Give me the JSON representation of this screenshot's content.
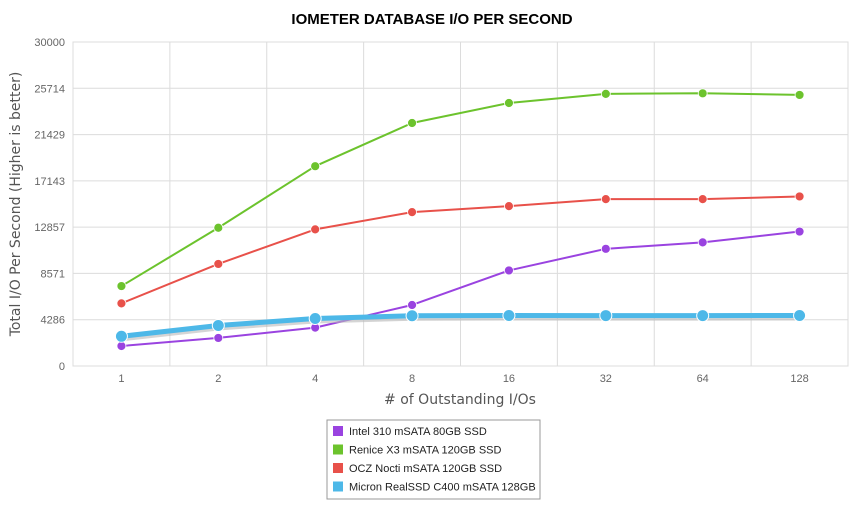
{
  "chart_data": {
    "type": "line",
    "title": "IOMETER DATABASE I/O PER SECOND",
    "xlabel": "# of Outstanding I/Os",
    "ylabel": "Total I/O Per Second (Higher is better)",
    "categories": [
      "1",
      "2",
      "4",
      "8",
      "16",
      "32",
      "64",
      "128"
    ],
    "ylim": [
      0,
      30000
    ],
    "yticks": [
      "0",
      "4286",
      "8571",
      "12857",
      "17143",
      "21429",
      "25714",
      "30000"
    ],
    "grid": true,
    "legend_position": "bottom",
    "series": [
      {
        "name": "Intel 310 mSATA 80GB SSD",
        "color": "#9a43e0",
        "values": [
          1850,
          2600,
          3550,
          5650,
          8850,
          10850,
          11450,
          12450
        ]
      },
      {
        "name": "Renice X3 mSATA 120GB SSD",
        "color": "#6cc32d",
        "values": [
          7400,
          12800,
          18500,
          22500,
          24350,
          25200,
          25250,
          25100
        ]
      },
      {
        "name": "OCZ Nocti mSATA 120GB SSD",
        "color": "#e8514a",
        "values": [
          5800,
          9450,
          12650,
          14250,
          14800,
          15450,
          15450,
          15700
        ]
      },
      {
        "name": "Micron RealSSD C400 mSATA 128GB",
        "color": "#4db8e8",
        "values": [
          2750,
          3750,
          4400,
          4650,
          4680,
          4670,
          4660,
          4680
        ]
      }
    ]
  }
}
